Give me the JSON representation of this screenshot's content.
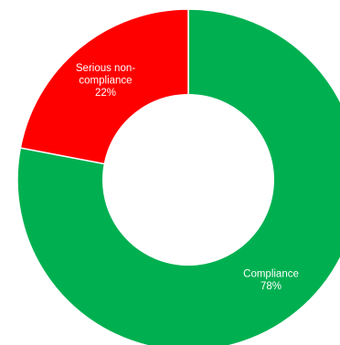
{
  "chart_data": {
    "type": "pie",
    "subtype": "donut",
    "title": "",
    "slices": [
      {
        "name": "Compliance",
        "label_lines": [
          "Compliance"
        ],
        "value": 78,
        "percent_label": "78%",
        "color": "#00b050"
      },
      {
        "name": "Serious non-compliance",
        "label_lines": [
          "Serious non-",
          "compliance"
        ],
        "value": 22,
        "percent_label": "22%",
        "color": "#ff0000"
      }
    ],
    "separator_color": "#ffffff",
    "legend": "none"
  }
}
